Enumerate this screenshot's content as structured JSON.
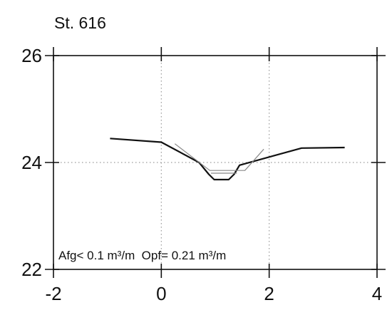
{
  "chart_data": {
    "type": "line",
    "title": "St. 616",
    "xlabel": "",
    "ylabel": "",
    "xlim": [
      -2,
      4
    ],
    "ylim": [
      22,
      26
    ],
    "x_ticks": [
      -2,
      0,
      2,
      4
    ],
    "y_ticks": [
      22,
      24,
      26
    ],
    "x_tick_labels": [
      "-2",
      "0",
      "2",
      "4"
    ],
    "y_tick_labels": [
      "22",
      "24",
      "26"
    ],
    "grid": "dotted lines at x=0, x=2 and y=24",
    "series": [
      {
        "style": "solid-thick",
        "color": "#111111",
        "points": [
          [
            -0.95,
            24.45
          ],
          [
            0.0,
            24.38
          ],
          [
            0.7,
            24.0
          ],
          [
            0.88,
            23.78
          ],
          [
            0.98,
            23.68
          ],
          [
            1.25,
            23.68
          ],
          [
            1.35,
            23.78
          ],
          [
            1.45,
            23.95
          ],
          [
            2.6,
            24.27
          ],
          [
            3.4,
            24.28
          ]
        ]
      },
      {
        "style": "solid-thin",
        "color": "#888888",
        "points": [
          [
            0.25,
            24.35
          ],
          [
            0.9,
            23.85
          ],
          [
            1.55,
            23.85
          ],
          [
            1.9,
            24.25
          ]
        ]
      },
      {
        "style": "solid-thin",
        "color": "#888888",
        "points": [
          [
            0.92,
            23.8
          ],
          [
            1.4,
            23.8
          ]
        ]
      }
    ],
    "annotation": "Afg< 0.1 m³/m  Opf= 0.21 m³/m"
  }
}
